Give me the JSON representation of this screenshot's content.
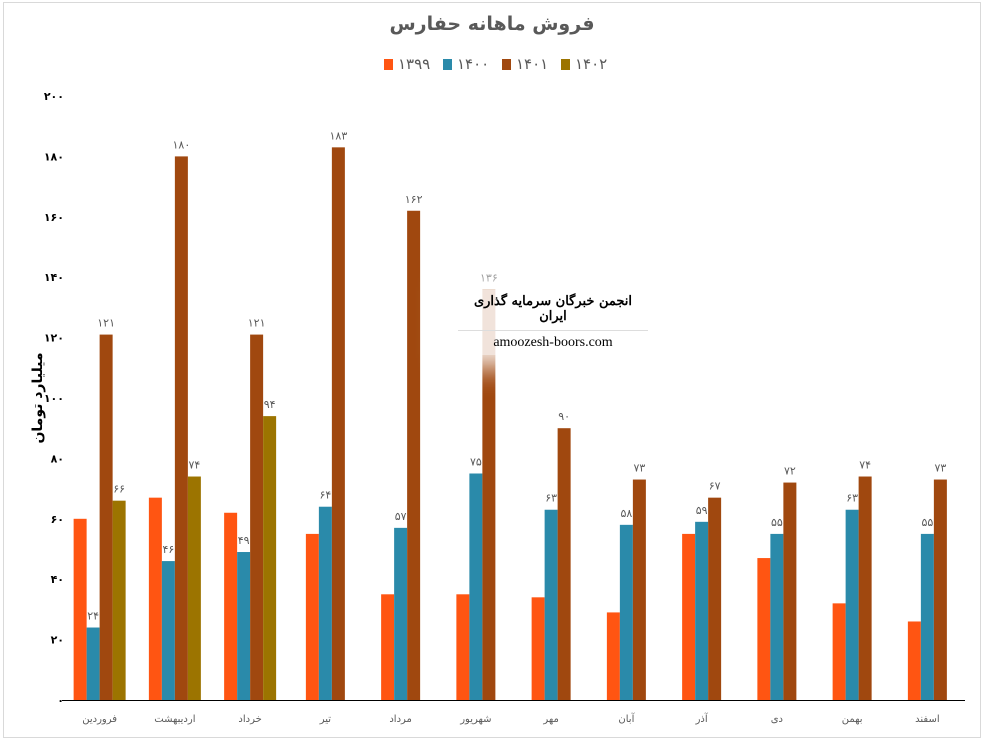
{
  "chart_data": {
    "type": "bar",
    "title": "فروش ماهانه حفارس",
    "xlabel": "",
    "ylabel": "میلیارد تومان",
    "ylim": [
      0,
      200
    ],
    "yticks": [
      "۰",
      "۲۰",
      "۴۰",
      "۶۰",
      "۸۰",
      "۱۰۰",
      "۱۲۰",
      "۱۴۰",
      "۱۶۰",
      "۱۸۰",
      "۲۰۰"
    ],
    "legend_position": "top",
    "categories": [
      "فروردین",
      "اردیبهشت",
      "خرداد",
      "تیر",
      "مرداد",
      "شهریور",
      "مهر",
      "آبان",
      "آذر",
      "دی",
      "بهمن",
      "اسفند"
    ],
    "series": [
      {
        "name": "۱۳۹۹",
        "color": "#FF5512",
        "labels": false,
        "values": [
          60,
          67,
          62,
          55,
          35,
          35,
          34,
          29,
          55,
          47,
          32,
          26
        ]
      },
      {
        "name": "۱۴۰۰",
        "color": "#2A8AAA",
        "labels": true,
        "values": [
          24,
          46,
          49,
          64,
          57,
          75,
          63,
          58,
          59,
          55,
          63,
          55
        ]
      },
      {
        "name": "۱۴۰۱",
        "color": "#A0480F",
        "labels": true,
        "values": [
          121,
          180,
          121,
          183,
          162,
          136,
          90,
          73,
          67,
          72,
          74,
          73
        ]
      },
      {
        "name": "۱۴۰۲",
        "color": "#9C7400",
        "labels": true,
        "values": [
          66,
          74,
          94,
          null,
          null,
          null,
          null,
          null,
          null,
          null,
          null,
          null
        ]
      }
    ]
  },
  "watermark": {
    "line1": "انجمن خبرگان سرمایه گذاری ایران",
    "line2": "amoozesh-boors.com"
  }
}
